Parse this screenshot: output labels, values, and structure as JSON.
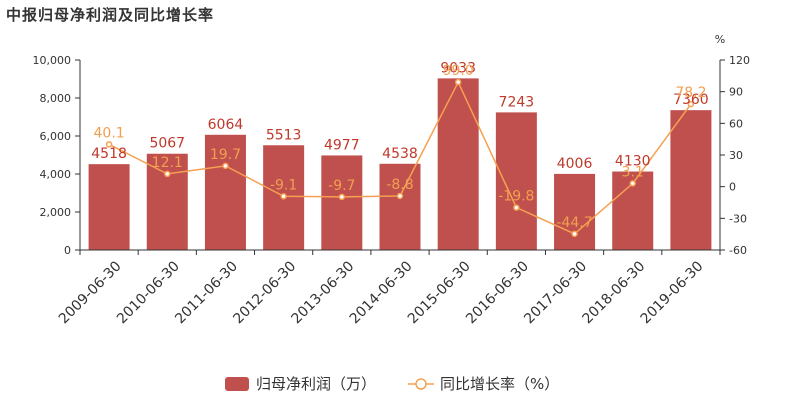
{
  "title": "中报归母净利润及同比增长率",
  "colors": {
    "bar": "#c0504d",
    "bar_label": "#c0392b",
    "line": "#f5a052"
  },
  "chart_data": {
    "type": "bar",
    "title": "中报归母净利润及同比增长率",
    "categories": [
      "2009-06-30",
      "2010-06-30",
      "2011-06-30",
      "2012-06-30",
      "2013-06-30",
      "2014-06-30",
      "2015-06-30",
      "2016-06-30",
      "2017-06-30",
      "2018-06-30",
      "2019-06-30"
    ],
    "series": [
      {
        "name": "归母净利润（万）",
        "type": "bar",
        "axis": "left",
        "values": [
          4518,
          5067,
          6064,
          5513,
          4977,
          4538,
          9033,
          7243,
          4006,
          4130,
          7360
        ]
      },
      {
        "name": "同比增长率（%）",
        "type": "line",
        "axis": "right",
        "values": [
          40.1,
          12.1,
          19.7,
          -9.1,
          -9.7,
          -8.8,
          99.0,
          -19.8,
          -44.7,
          3.1,
          78.2
        ]
      }
    ],
    "left_axis": {
      "ylim": [
        0,
        10000
      ],
      "ticks": [
        "0",
        "2,000",
        "4,000",
        "6,000",
        "8,000",
        "10,000"
      ]
    },
    "right_axis": {
      "unit": "%",
      "ylim": [
        -60,
        120
      ],
      "ticks": [
        "-60",
        "-30",
        "0",
        "30",
        "60",
        "90",
        "120"
      ]
    },
    "legend": {
      "position": "bottom-center",
      "entries": [
        "归母净利润（万）",
        "同比增长率（%）"
      ]
    },
    "grid": false
  }
}
